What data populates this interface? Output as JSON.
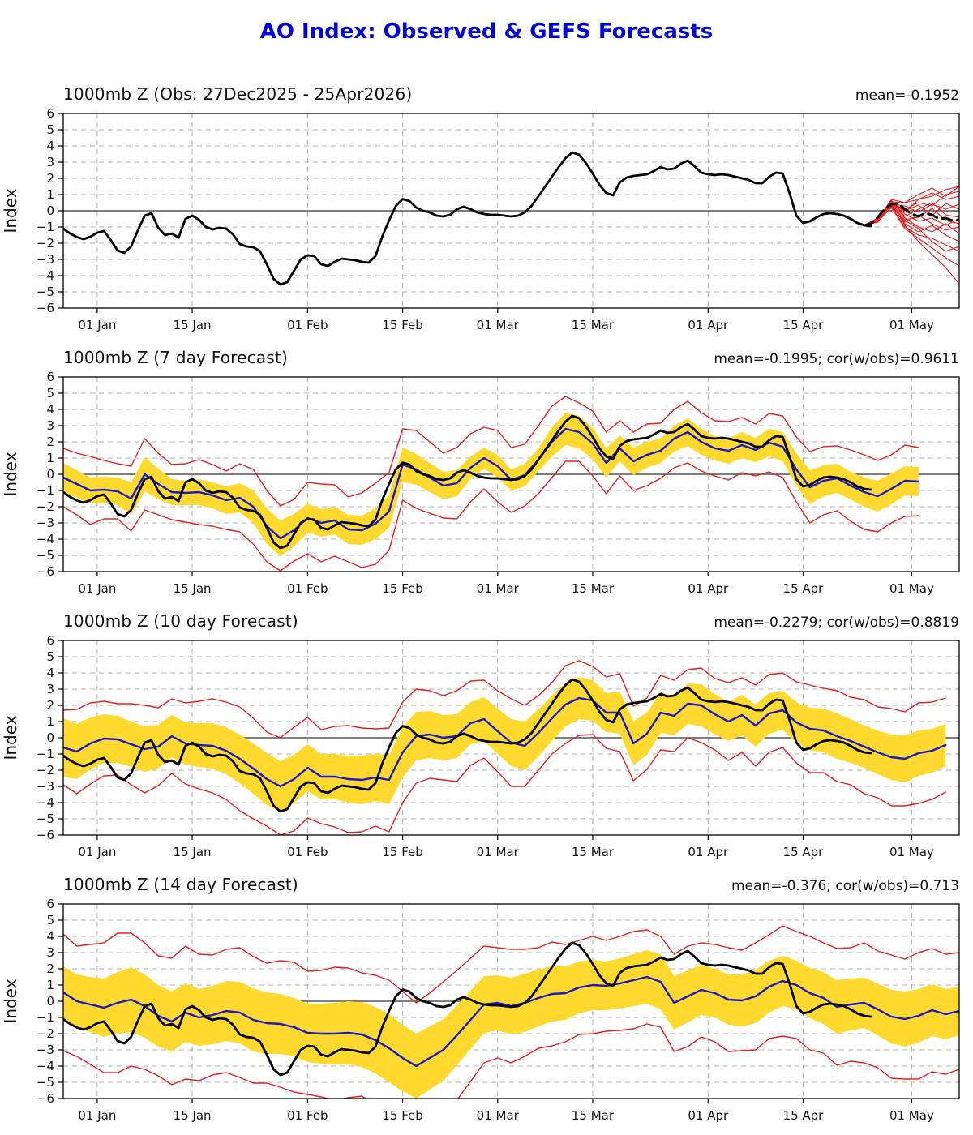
{
  "page_title": "AO Index: Observed & GEFS Forecasts",
  "colors": {
    "title": "#0000dd",
    "observed": "#000000",
    "ensemble_mean": "#000000",
    "ensemble_member": "#e62020",
    "forecast_mean": "#1a1acd",
    "band": "#ffd92e",
    "envelope": "#e62020",
    "grid": "#b0b0b0",
    "zero_line": "#333333",
    "frame": "#000000"
  },
  "x_axis": {
    "day_range": [
      0,
      132
    ],
    "tick_days": [
      5,
      19,
      36,
      50,
      64,
      78,
      95,
      109,
      125
    ],
    "tick_labels": [
      "01 Jan",
      "15 Jan",
      "01 Feb",
      "15 Feb",
      "01 Mar",
      "15 Mar",
      "01 Apr",
      "15 Apr",
      "01 May"
    ]
  },
  "y_axis": {
    "label": "Index",
    "min": -6,
    "max": 6,
    "tick_step": 1
  },
  "observed": {
    "start": 0,
    "step": 1,
    "values": [
      -1.1,
      -1.4,
      -1.62,
      -1.75,
      -1.6,
      -1.35,
      -1.25,
      -1.8,
      -2.45,
      -2.6,
      -2.2,
      -1.2,
      -0.3,
      -0.15,
      -1.05,
      -1.5,
      -1.4,
      -1.65,
      -0.5,
      -0.3,
      -0.55,
      -1.0,
      -1.15,
      -1.05,
      -1.1,
      -1.45,
      -2.05,
      -2.2,
      -2.25,
      -2.5,
      -3.3,
      -4.2,
      -4.55,
      -4.4,
      -3.7,
      -3.0,
      -2.75,
      -2.8,
      -3.3,
      -3.4,
      -3.15,
      -2.95,
      -3.0,
      -3.05,
      -3.15,
      -3.2,
      -2.8,
      -1.6,
      -0.6,
      0.3,
      0.72,
      0.6,
      0.2,
      0.0,
      -0.1,
      -0.3,
      -0.35,
      -0.25,
      0.1,
      0.25,
      0.1,
      -0.1,
      -0.2,
      -0.25,
      -0.25,
      -0.3,
      -0.35,
      -0.3,
      -0.1,
      0.3,
      0.9,
      1.5,
      2.1,
      2.7,
      3.25,
      3.6,
      3.45,
      2.95,
      2.3,
      1.6,
      1.1,
      0.95,
      1.75,
      2.05,
      2.15,
      2.2,
      2.25,
      2.45,
      2.7,
      2.55,
      2.6,
      2.9,
      3.1,
      2.75,
      2.35,
      2.25,
      2.2,
      2.25,
      2.2,
      2.1,
      2.0,
      1.9,
      1.7,
      1.7,
      2.1,
      2.35,
      2.3,
      1.1,
      -0.3,
      -0.75,
      -0.65,
      -0.4,
      -0.2,
      -0.15,
      -0.2,
      -0.3,
      -0.5,
      -0.75,
      -0.9,
      -0.95
    ]
  },
  "chart_data": [
    {
      "type": "line",
      "title": "1000mb Z (Obs: 27Dec2025 - 25Apr2026)",
      "stats_label": "mean=-0.1952",
      "series": {
        "ensemble_mean": {
          "start": 118,
          "step": 1,
          "values": [
            -0.9,
            -0.8,
            -0.4,
            0.1,
            0.4,
            0.45,
            0.1,
            -0.2,
            -0.35,
            -0.15,
            -0.25,
            -0.5,
            -0.45,
            -0.6,
            -0.55
          ]
        },
        "ensemble_members": {
          "start": 118,
          "step": 2,
          "values": [
            [
              -0.9,
              -0.45,
              0.55,
              0.5,
              0.7,
              0.9,
              1.3,
              1.5
            ],
            [
              -0.9,
              -0.55,
              0.45,
              0.1,
              0.5,
              0.3,
              1.0,
              1.2
            ],
            [
              -0.9,
              -0.5,
              0.6,
              -0.1,
              0.7,
              1.1,
              0.7,
              0.9
            ],
            [
              -0.9,
              -0.65,
              0.4,
              0.3,
              -0.1,
              0.4,
              0.1,
              0.4
            ],
            [
              -0.9,
              -0.45,
              0.5,
              0.0,
              0.35,
              -0.3,
              0.45,
              0.1
            ],
            [
              -0.9,
              -0.6,
              0.65,
              -0.35,
              0.1,
              0.5,
              -0.25,
              -0.4
            ],
            [
              -0.9,
              -0.5,
              0.35,
              -0.55,
              -0.4,
              0.15,
              -0.6,
              -0.8
            ],
            [
              -0.9,
              -0.7,
              0.5,
              -0.2,
              -0.65,
              -0.45,
              -0.9,
              -0.5
            ],
            [
              -0.9,
              -0.45,
              0.3,
              -0.7,
              -0.25,
              -0.8,
              -1.2,
              -1.0
            ],
            [
              -0.9,
              -0.6,
              0.55,
              -0.45,
              -1.0,
              -1.3,
              -0.8,
              -1.4
            ],
            [
              -0.9,
              -0.5,
              0.4,
              -0.8,
              -1.3,
              -0.9,
              -1.5,
              -1.9
            ],
            [
              -0.9,
              -0.7,
              0.25,
              -1.0,
              -1.5,
              -1.7,
              -2.1,
              -2.5
            ],
            [
              -0.9,
              -0.55,
              0.45,
              -0.6,
              -1.1,
              -1.9,
              -2.5,
              -2.2
            ],
            [
              -0.9,
              -0.65,
              0.2,
              -1.1,
              -1.7,
              -2.3,
              -2.9,
              -3.4
            ],
            [
              -0.9,
              -0.5,
              0.5,
              -0.9,
              -1.9,
              -2.7,
              -3.5,
              -4.5
            ],
            [
              -0.9,
              -0.55,
              0.7,
              0.5,
              1.0,
              1.4,
              0.9,
              1.5
            ]
          ]
        }
      }
    },
    {
      "type": "line",
      "title": "1000mb Z (7 day Forecast)",
      "stats_label": "mean=-0.1995; cor(w/obs)=0.9611",
      "series": {
        "forecast": {
          "start": 0,
          "step": 2,
          "values": [
            -0.2,
            -0.6,
            -1.0,
            -0.95,
            -1.05,
            -1.5,
            0.0,
            -0.6,
            -1.1,
            -1.15,
            -1.1,
            -1.3,
            -1.6,
            -1.45,
            -2.0,
            -3.2,
            -3.95,
            -3.45,
            -2.7,
            -3.0,
            -2.85,
            -3.4,
            -3.45,
            -3.05,
            -2.3,
            0.6,
            0.3,
            -0.2,
            -0.7,
            -0.55,
            0.4,
            1.0,
            0.5,
            -0.35,
            -0.05,
            0.9,
            2.0,
            2.8,
            2.6,
            1.9,
            0.7,
            1.6,
            0.8,
            1.2,
            1.45,
            2.2,
            2.6,
            2.0,
            1.6,
            1.45,
            1.8,
            1.5,
            1.95,
            1.7,
            0.3,
            -0.8,
            -0.4,
            -0.25,
            -0.7,
            -1.1,
            -1.35,
            -0.9,
            -0.4,
            -0.45
          ]
        },
        "band_halfwidth": [
          0.9,
          0.85,
          0.8,
          0.8,
          0.85,
          1.0,
          1.05,
          0.95,
          0.8,
          0.75,
          0.8,
          0.8,
          0.85,
          0.9,
          1.0,
          1.1,
          1.1,
          1.0,
          0.9,
          0.85,
          0.85,
          0.9,
          0.9,
          0.95,
          1.0,
          1.05,
          0.95,
          0.9,
          0.85,
          0.8,
          0.7,
          0.65,
          0.7,
          0.65,
          0.7,
          0.7,
          0.9,
          1.0,
          1.0,
          0.95,
          0.9,
          0.8,
          0.85,
          0.8,
          0.75,
          0.8,
          0.85,
          0.8,
          0.75,
          0.8,
          0.8,
          0.75,
          0.85,
          0.9,
          1.0,
          1.05,
          0.95,
          0.9,
          0.85,
          0.9,
          0.95,
          0.95,
          0.9,
          0.9
        ],
        "envelope_halfwidth": [
          1.8,
          1.9,
          2.1,
          1.8,
          1.7,
          2.0,
          2.2,
          1.9,
          1.7,
          1.8,
          2.0,
          1.9,
          1.8,
          2.1,
          2.3,
          2.2,
          2.0,
          1.9,
          2.2,
          2.4,
          2.2,
          2.0,
          2.3,
          2.5,
          2.4,
          2.2,
          2.4,
          2.2,
          2.0,
          2.2,
          2.1,
          1.9,
          2.2,
          2.0,
          1.9,
          2.1,
          2.2,
          2.0,
          1.8,
          2.0,
          1.9,
          1.7,
          1.8,
          1.9,
          1.7,
          1.8,
          1.9,
          1.8,
          1.7,
          1.8,
          1.7,
          1.6,
          1.8,
          1.9,
          2.0,
          2.2,
          2.1,
          2.0,
          2.2,
          2.3,
          2.2,
          2.1,
          2.2,
          2.1
        ]
      }
    },
    {
      "type": "line",
      "title": "1000mb Z (10 day Forecast)",
      "stats_label": "mean=-0.2279; cor(w/obs)=0.8819",
      "series": {
        "forecast": {
          "start": 0,
          "step": 2,
          "values": [
            -0.6,
            -0.85,
            -0.35,
            -0.05,
            -0.1,
            -0.4,
            -0.7,
            -0.55,
            0.1,
            -0.35,
            -0.45,
            -0.5,
            -0.8,
            -1.3,
            -1.9,
            -2.55,
            -3.0,
            -2.55,
            -1.85,
            -2.4,
            -2.4,
            -2.55,
            -2.6,
            -2.45,
            -2.6,
            -0.9,
            0.1,
            0.2,
            0.0,
            0.1,
            0.9,
            1.15,
            0.4,
            -0.3,
            -0.5,
            0.3,
            1.2,
            2.05,
            2.45,
            2.3,
            1.55,
            1.55,
            -0.35,
            0.25,
            1.55,
            1.35,
            2.1,
            2.0,
            1.45,
            1.0,
            1.4,
            0.75,
            1.5,
            1.7,
            0.95,
            0.55,
            0.45,
            0.1,
            -0.2,
            -0.55,
            -0.9,
            -1.2,
            -1.3,
            -0.95,
            -0.8,
            -0.45
          ]
        },
        "band_halfwidth": [
          1.8,
          1.7,
          1.6,
          1.5,
          1.45,
          1.4,
          1.4,
          1.35,
          1.3,
          1.3,
          1.35,
          1.4,
          1.45,
          1.5,
          1.55,
          1.6,
          1.55,
          1.5,
          1.45,
          1.4,
          1.4,
          1.45,
          1.5,
          1.45,
          1.5,
          1.55,
          1.5,
          1.45,
          1.4,
          1.35,
          1.3,
          1.35,
          1.4,
          1.45,
          1.5,
          1.45,
          1.4,
          1.35,
          1.3,
          1.25,
          1.2,
          1.3,
          1.35,
          1.3,
          1.25,
          1.2,
          1.25,
          1.3,
          1.25,
          1.2,
          1.25,
          1.3,
          1.25,
          1.2,
          1.25,
          1.3,
          1.35,
          1.4,
          1.35,
          1.3,
          1.35,
          1.4,
          1.45,
          1.4,
          1.35,
          1.3
        ],
        "envelope_halfwidth": [
          2.3,
          2.6,
          2.5,
          2.3,
          2.2,
          2.5,
          2.7,
          2.4,
          2.3,
          2.5,
          2.7,
          2.9,
          3.0,
          3.2,
          3.1,
          2.9,
          3.0,
          3.2,
          3.1,
          2.9,
          3.1,
          3.3,
          3.2,
          3.0,
          3.2,
          3.1,
          2.9,
          2.7,
          2.6,
          2.8,
          2.6,
          2.4,
          2.5,
          2.7,
          2.5,
          2.3,
          2.2,
          2.4,
          2.3,
          2.1,
          2.2,
          2.4,
          2.3,
          2.2,
          2.3,
          2.2,
          2.1,
          2.3,
          2.2,
          2.4,
          2.3,
          2.5,
          2.4,
          2.3,
          2.5,
          2.7,
          2.6,
          2.8,
          2.7,
          2.9,
          2.8,
          3.0,
          2.9,
          3.1,
          3.0,
          2.9
        ]
      }
    },
    {
      "type": "line",
      "title": "1000mb Z (14 day Forecast)",
      "stats_label": "mean=-0.376; cor(w/obs)=0.713",
      "series": {
        "forecast": {
          "start": 0,
          "step": 2,
          "values": [
            0.55,
            0.0,
            -0.2,
            -0.4,
            -0.1,
            0.1,
            -0.3,
            -0.9,
            -1.25,
            -0.7,
            -1.0,
            -0.85,
            -0.6,
            -0.7,
            -1.15,
            -1.35,
            -1.4,
            -1.6,
            -1.95,
            -2.0,
            -2.0,
            -1.95,
            -2.05,
            -2.4,
            -2.9,
            -3.5,
            -4.0,
            -3.5,
            -3.0,
            -2.1,
            -1.15,
            -0.2,
            -0.1,
            -0.3,
            -0.1,
            0.2,
            0.45,
            0.5,
            0.85,
            1.0,
            0.95,
            1.1,
            1.3,
            1.5,
            1.2,
            -0.1,
            0.3,
            0.7,
            0.5,
            0.1,
            0.05,
            0.3,
            0.9,
            1.25,
            1.0,
            0.5,
            0.2,
            -0.35,
            -0.2,
            -0.1,
            -0.5,
            -0.95,
            -1.1,
            -0.9,
            -0.55,
            -0.8,
            -0.6
          ]
        },
        "band_halfwidth": [
          1.6,
          1.65,
          1.7,
          1.8,
          1.9,
          2.0,
          1.95,
          1.9,
          1.85,
          1.8,
          1.75,
          1.8,
          1.85,
          1.9,
          1.95,
          1.9,
          1.85,
          1.8,
          1.8,
          1.85,
          1.9,
          1.95,
          2.0,
          2.05,
          2.1,
          2.05,
          2.0,
          1.95,
          1.9,
          1.85,
          1.8,
          1.75,
          1.7,
          1.75,
          1.8,
          1.75,
          1.7,
          1.65,
          1.6,
          1.55,
          1.5,
          1.55,
          1.6,
          1.65,
          1.7,
          1.65,
          1.6,
          1.55,
          1.5,
          1.55,
          1.6,
          1.65,
          1.6,
          1.55,
          1.5,
          1.55,
          1.6,
          1.65,
          1.6,
          1.55,
          1.6,
          1.65,
          1.7,
          1.65,
          1.6,
          1.55,
          1.5
        ],
        "envelope_halfwidth": [
          3.6,
          3.4,
          3.7,
          4.0,
          4.3,
          4.1,
          3.9,
          3.7,
          3.9,
          4.1,
          3.9,
          3.7,
          3.8,
          4.0,
          3.9,
          3.7,
          3.9,
          4.0,
          3.8,
          3.9,
          4.1,
          4.0,
          3.8,
          4.0,
          4.2,
          4.1,
          3.9,
          4.0,
          4.2,
          4.0,
          3.8,
          3.6,
          3.4,
          3.5,
          3.3,
          3.1,
          3.2,
          3.0,
          2.9,
          3.0,
          2.8,
          2.9,
          3.0,
          2.9,
          2.8,
          3.0,
          3.1,
          2.9,
          3.0,
          3.2,
          3.1,
          3.3,
          3.2,
          3.4,
          3.3,
          3.5,
          3.4,
          3.6,
          3.5,
          3.7,
          3.6,
          3.8,
          3.7,
          3.9,
          3.8,
          3.7,
          3.6
        ]
      }
    }
  ]
}
